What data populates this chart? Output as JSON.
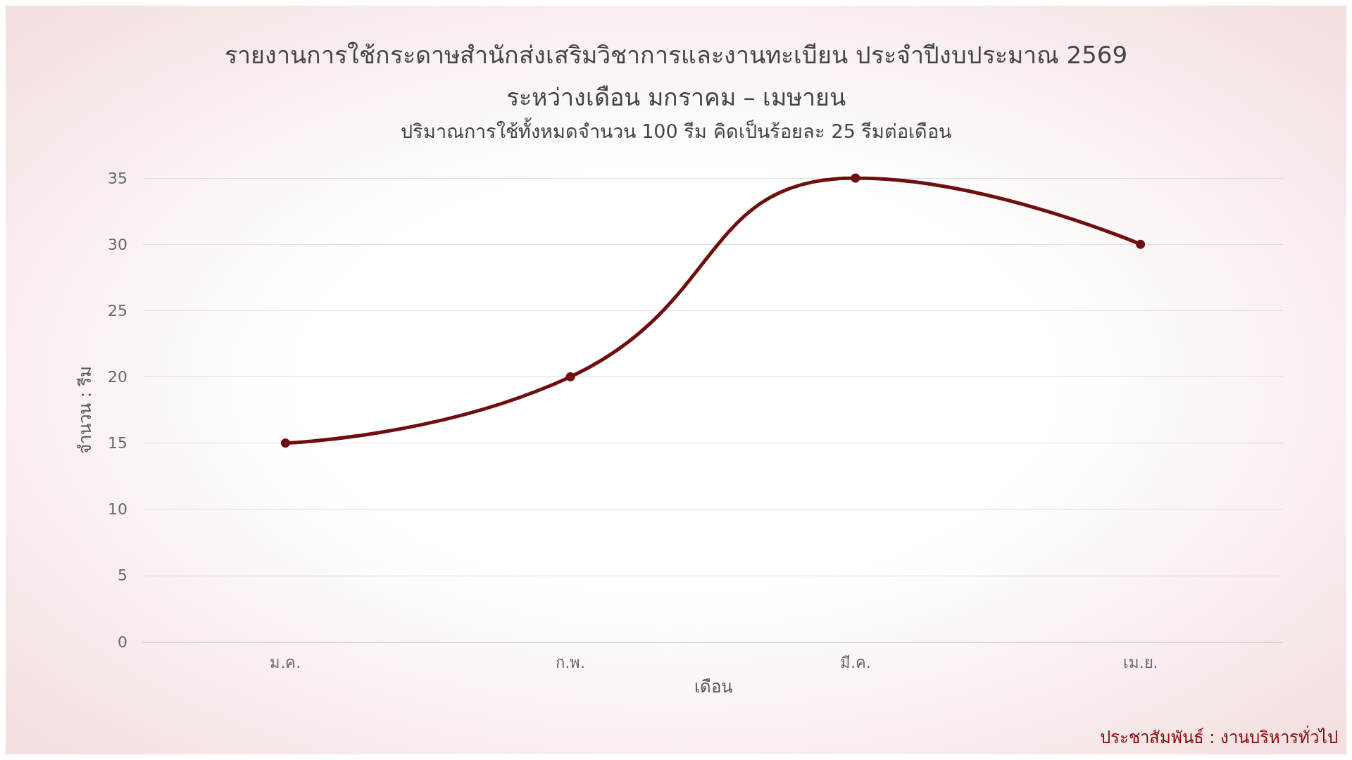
{
  "chart_data": {
    "type": "line",
    "title": "รายงานการใช้กระดาษสำนักส่งเสริมวิชาการและงานทะเบียน ประจำปีงบประมาณ 2569\nระหว่างเดือน มกราคม – เมษายน",
    "subtitle": "ปริมาณการใช้ทั้งหมดจำนวน 100 รีม คิดเป็นร้อยละ 25 รีมต่อเดือน",
    "xlabel": "เดือน",
    "ylabel": "จำนวน : รีม",
    "annotations": [
      "ประชาสัมพันธ์ : งานบริหารทั่วไป"
    ],
    "categories": [
      "ม.ค.",
      "ก.พ.",
      "มี.ค.",
      "เม.ย."
    ],
    "series": [
      {
        "color": "#6e0e0e",
        "values": [
          15,
          20,
          35,
          30
        ]
      }
    ],
    "ylim": [
      0,
      35
    ],
    "yticks": [
      0,
      5,
      10,
      15,
      20,
      25,
      30,
      35
    ],
    "grid": "y",
    "marker": "circle",
    "line_style": "solid"
  }
}
